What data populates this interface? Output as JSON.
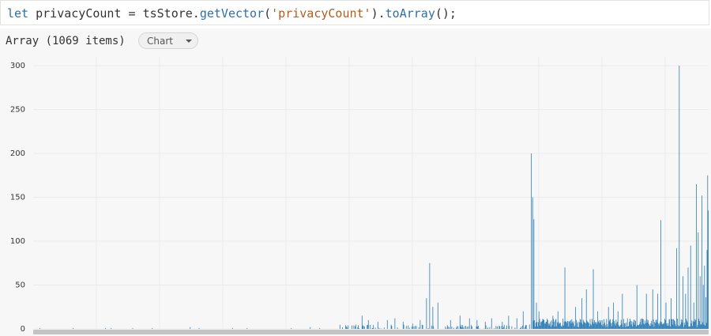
{
  "code": {
    "keyword": "let",
    "var_assign": " privacyCount = tsStore.",
    "fn1": "getVector",
    "open": "(",
    "arg": "'privacyCount'",
    "close_dot": ").",
    "fn2": "toArray",
    "tail": "();"
  },
  "output": {
    "header": "Array (1069 items)",
    "view_select": "Chart"
  },
  "colors": {
    "bar": "#2b7bb4",
    "grid": "#ebebeb",
    "scrollbar": "#c4c4c4"
  },
  "chart_data": {
    "type": "bar",
    "n": 1069,
    "ylim": [
      0,
      310
    ],
    "yticks": [
      0,
      50,
      100,
      150,
      200,
      250,
      300
    ],
    "ytick_labels": [
      "0",
      "50",
      "100",
      "150",
      "200",
      "250",
      "300"
    ],
    "xlabel": "",
    "ylabel": "",
    "title": "",
    "grid": true,
    "notable": [
      [
        10,
        1
      ],
      [
        188,
        1
      ],
      [
        248,
        2
      ],
      [
        262,
        1
      ],
      [
        338,
        1
      ],
      [
        408,
        1
      ],
      [
        438,
        2
      ],
      [
        498,
        4
      ],
      [
        510,
        5
      ],
      [
        520,
        15
      ],
      [
        530,
        10
      ],
      [
        545,
        8
      ],
      [
        560,
        10
      ],
      [
        572,
        12
      ],
      [
        585,
        8
      ],
      [
        600,
        6
      ],
      [
        612,
        10
      ],
      [
        622,
        35
      ],
      [
        627,
        75
      ],
      [
        632,
        25
      ],
      [
        640,
        30
      ],
      [
        660,
        10
      ],
      [
        675,
        15
      ],
      [
        690,
        12
      ],
      [
        702,
        10
      ],
      [
        715,
        8
      ],
      [
        725,
        12
      ],
      [
        742,
        8
      ],
      [
        752,
        15
      ],
      [
        765,
        12
      ],
      [
        775,
        20
      ],
      [
        788,
        200
      ],
      [
        790,
        150
      ],
      [
        792,
        125
      ],
      [
        796,
        30
      ],
      [
        800,
        20
      ],
      [
        808,
        10
      ],
      [
        822,
        15
      ],
      [
        830,
        20
      ],
      [
        841,
        70
      ],
      [
        850,
        10
      ],
      [
        858,
        25
      ],
      [
        868,
        35
      ],
      [
        875,
        45
      ],
      [
        886,
        68
      ],
      [
        893,
        20
      ],
      [
        900,
        10
      ],
      [
        910,
        25
      ],
      [
        918,
        30
      ],
      [
        925,
        20
      ],
      [
        932,
        40
      ],
      [
        940,
        12
      ],
      [
        955,
        50
      ],
      [
        970,
        40
      ],
      [
        980,
        45
      ],
      [
        988,
        40
      ],
      [
        993,
        124
      ],
      [
        1001,
        30
      ],
      [
        1009,
        35
      ],
      [
        1018,
        92
      ],
      [
        1022,
        300
      ],
      [
        1028,
        60
      ],
      [
        1032,
        40
      ],
      [
        1036,
        70
      ],
      [
        1040,
        95
      ],
      [
        1045,
        30
      ],
      [
        1049,
        165
      ],
      [
        1052,
        110
      ],
      [
        1055,
        60
      ],
      [
        1058,
        152
      ],
      [
        1060,
        50
      ],
      [
        1062,
        72
      ],
      [
        1064,
        36
      ],
      [
        1066,
        90
      ],
      [
        1067,
        175
      ],
      [
        1068,
        135
      ]
    ]
  }
}
